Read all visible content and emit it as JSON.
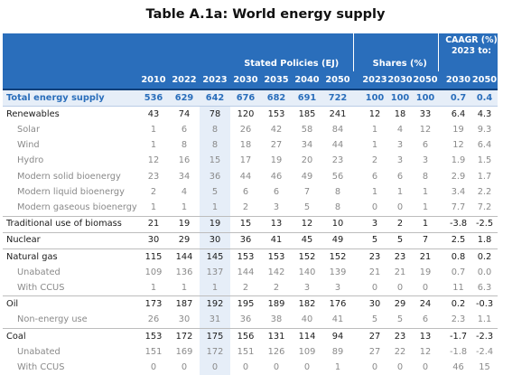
{
  "title": "Table A.1a: World energy supply",
  "headers": {
    "stated_policies": "Stated Policies (EJ)",
    "shares": "Shares (%)",
    "caagr_line1": "CAAGR (%)",
    "caagr_line2": "2023 to:",
    "years": [
      "2010",
      "2022",
      "2023",
      "2030",
      "2035",
      "2040",
      "2050"
    ],
    "share_years": [
      "2023",
      "2030",
      "2050"
    ],
    "caagr_years": [
      "2030",
      "2050"
    ]
  },
  "highlight_color": "#e6eef8",
  "header_color": "#2a6ebb",
  "rows": [
    {
      "label": "Total energy supply",
      "kind": "total",
      "values": [
        "536",
        "629",
        "642",
        "676",
        "682",
        "691",
        "722"
      ],
      "shares": [
        "100",
        "100",
        "100"
      ],
      "caagr": [
        "0.7",
        "0.4"
      ]
    },
    {
      "label": "Renewables",
      "kind": "main",
      "values": [
        "43",
        "74",
        "78",
        "120",
        "153",
        "185",
        "241"
      ],
      "shares": [
        "12",
        "18",
        "33"
      ],
      "caagr": [
        "6.4",
        "4.3"
      ]
    },
    {
      "label": "Solar",
      "kind": "sub",
      "values": [
        "1",
        "6",
        "8",
        "26",
        "42",
        "58",
        "84"
      ],
      "shares": [
        "1",
        "4",
        "12"
      ],
      "caagr": [
        "19",
        "9.3"
      ]
    },
    {
      "label": "Wind",
      "kind": "sub",
      "values": [
        "1",
        "8",
        "8",
        "18",
        "27",
        "34",
        "44"
      ],
      "shares": [
        "1",
        "3",
        "6"
      ],
      "caagr": [
        "12",
        "6.4"
      ]
    },
    {
      "label": "Hydro",
      "kind": "sub",
      "values": [
        "12",
        "16",
        "15",
        "17",
        "19",
        "20",
        "23"
      ],
      "shares": [
        "2",
        "3",
        "3"
      ],
      "caagr": [
        "1.9",
        "1.5"
      ]
    },
    {
      "label": "Modern solid bioenergy",
      "kind": "sub",
      "values": [
        "23",
        "34",
        "36",
        "44",
        "46",
        "49",
        "56"
      ],
      "shares": [
        "6",
        "6",
        "8"
      ],
      "caagr": [
        "2.9",
        "1.7"
      ]
    },
    {
      "label": "Modern liquid bioenergy",
      "kind": "sub",
      "values": [
        "2",
        "4",
        "5",
        "6",
        "6",
        "7",
        "8"
      ],
      "shares": [
        "1",
        "1",
        "1"
      ],
      "caagr": [
        "3.4",
        "2.2"
      ]
    },
    {
      "label": "Modern gaseous bioenergy",
      "kind": "sub",
      "end": true,
      "values": [
        "1",
        "1",
        "1",
        "2",
        "3",
        "5",
        "8"
      ],
      "shares": [
        "0",
        "0",
        "1"
      ],
      "caagr": [
        "7.7",
        "7.2"
      ]
    },
    {
      "label": "Traditional use of biomass",
      "kind": "main",
      "end": true,
      "values": [
        "21",
        "19",
        "19",
        "15",
        "13",
        "12",
        "10"
      ],
      "shares": [
        "3",
        "2",
        "1"
      ],
      "caagr": [
        "-3.8",
        "-2.5"
      ]
    },
    {
      "label": "Nuclear",
      "kind": "main",
      "end": true,
      "values": [
        "30",
        "29",
        "30",
        "36",
        "41",
        "45",
        "49"
      ],
      "shares": [
        "5",
        "5",
        "7"
      ],
      "caagr": [
        "2.5",
        "1.8"
      ]
    },
    {
      "label": "Natural gas",
      "kind": "main",
      "values": [
        "115",
        "144",
        "145",
        "153",
        "153",
        "152",
        "152"
      ],
      "shares": [
        "23",
        "23",
        "21"
      ],
      "caagr": [
        "0.8",
        "0.2"
      ]
    },
    {
      "label": "Unabated",
      "kind": "sub",
      "values": [
        "109",
        "136",
        "137",
        "144",
        "142",
        "140",
        "139"
      ],
      "shares": [
        "21",
        "21",
        "19"
      ],
      "caagr": [
        "0.7",
        "0.0"
      ]
    },
    {
      "label": "With CCUS",
      "kind": "sub",
      "end": true,
      "values": [
        "1",
        "1",
        "1",
        "2",
        "2",
        "3",
        "3"
      ],
      "shares": [
        "0",
        "0",
        "0"
      ],
      "caagr": [
        "11",
        "6.3"
      ]
    },
    {
      "label": "Oil",
      "kind": "main",
      "values": [
        "173",
        "187",
        "192",
        "195",
        "189",
        "182",
        "176"
      ],
      "shares": [
        "30",
        "29",
        "24"
      ],
      "caagr": [
        "0.2",
        "-0.3"
      ]
    },
    {
      "label": "Non-energy use",
      "kind": "sub",
      "end": true,
      "values": [
        "26",
        "30",
        "31",
        "36",
        "38",
        "40",
        "41"
      ],
      "shares": [
        "5",
        "5",
        "6"
      ],
      "caagr": [
        "2.3",
        "1.1"
      ]
    },
    {
      "label": "Coal",
      "kind": "main",
      "values": [
        "153",
        "172",
        "175",
        "156",
        "131",
        "114",
        "94"
      ],
      "shares": [
        "27",
        "23",
        "13"
      ],
      "caagr": [
        "-1.7",
        "-2.3"
      ]
    },
    {
      "label": "Unabated",
      "kind": "sub",
      "values": [
        "151",
        "169",
        "172",
        "151",
        "126",
        "109",
        "89"
      ],
      "shares": [
        "27",
        "22",
        "12"
      ],
      "caagr": [
        "-1.8",
        "-2.4"
      ]
    },
    {
      "label": "With CCUS",
      "kind": "sub",
      "values": [
        "0",
        "0",
        "0",
        "0",
        "0",
        "0",
        "1"
      ],
      "shares": [
        "0",
        "0",
        "0"
      ],
      "caagr": [
        "46",
        "15"
      ]
    }
  ]
}
